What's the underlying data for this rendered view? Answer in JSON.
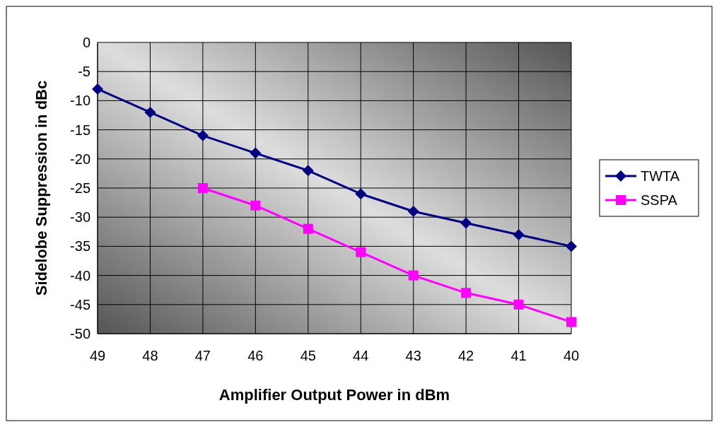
{
  "chart_data": {
    "type": "line",
    "xlabel": "Amplifier Output Power in dBm",
    "ylabel": "Sidelobe Suppression in dBc",
    "categories": [
      "49",
      "48",
      "47",
      "46",
      "45",
      "44",
      "43",
      "42",
      "41",
      "40"
    ],
    "series": [
      {
        "name": "TWTA",
        "color": "#000080",
        "marker": "diamond",
        "values": [
          -8,
          -12,
          -16,
          -19,
          -22,
          -26,
          -29,
          -31,
          -33,
          -35
        ]
      },
      {
        "name": "SSPA",
        "color": "#ff00ff",
        "marker": "square",
        "values": [
          null,
          null,
          -25,
          -28,
          -32,
          -36,
          -40,
          -43,
          -45,
          -48
        ]
      }
    ],
    "ylim": [
      -50,
      0
    ],
    "yticks": [
      -50,
      -45,
      -40,
      -35,
      -30,
      -25,
      -20,
      -15,
      -10,
      -5,
      0
    ],
    "grid": true,
    "legend": "right",
    "line_style": "solid"
  }
}
